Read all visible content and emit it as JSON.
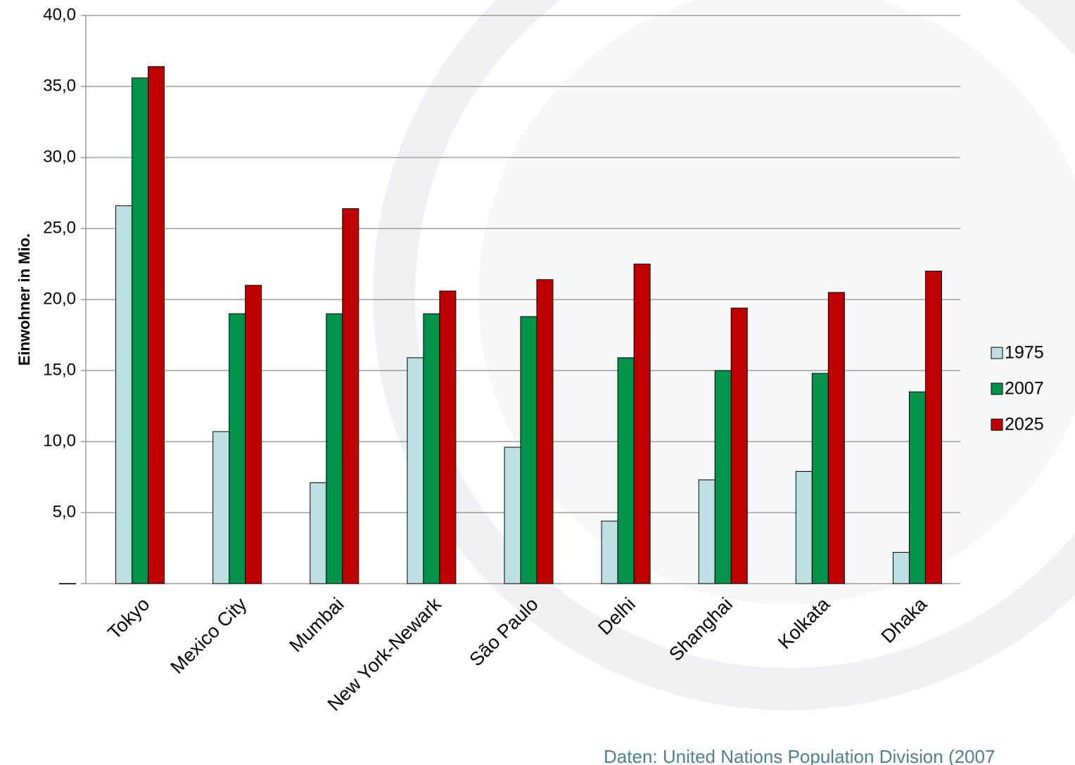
{
  "chart_data": {
    "type": "bar",
    "y_label": "Einwohner in Mio.",
    "source": "Daten: United Nations Population Division (2007",
    "categories": [
      "Tokyo",
      "Mexico City",
      "Mumbai",
      "New York-Newark",
      "São Paulo",
      "Delhi",
      "Shanghai",
      "Kolkata",
      "Dhaka"
    ],
    "series": [
      {
        "name": "1975",
        "color": "#bfe0e3",
        "values": [
          26.6,
          10.7,
          7.1,
          15.9,
          9.6,
          4.4,
          7.3,
          7.9,
          2.2
        ]
      },
      {
        "name": "2007",
        "color": "#00934a",
        "values": [
          35.6,
          19.0,
          19.0,
          19.0,
          18.8,
          15.9,
          15.0,
          14.8,
          13.5
        ]
      },
      {
        "name": "2025",
        "color": "#c00000",
        "values": [
          36.4,
          21.0,
          26.4,
          20.6,
          21.4,
          22.5,
          19.4,
          20.5,
          22.0
        ]
      }
    ],
    "ylim": [
      0,
      40
    ],
    "yticks": [
      {
        "value": 0,
        "label": "—"
      },
      {
        "value": 5,
        "label": "5,0"
      },
      {
        "value": 10,
        "label": "10,0"
      },
      {
        "value": 15,
        "label": "15,0"
      },
      {
        "value": 20,
        "label": "20,0"
      },
      {
        "value": 25,
        "label": "25,0"
      },
      {
        "value": 30,
        "label": "30,0"
      },
      {
        "value": 35,
        "label": "35,0"
      },
      {
        "value": 40,
        "label": "40,0"
      }
    ],
    "grid": true,
    "legend": "right"
  }
}
